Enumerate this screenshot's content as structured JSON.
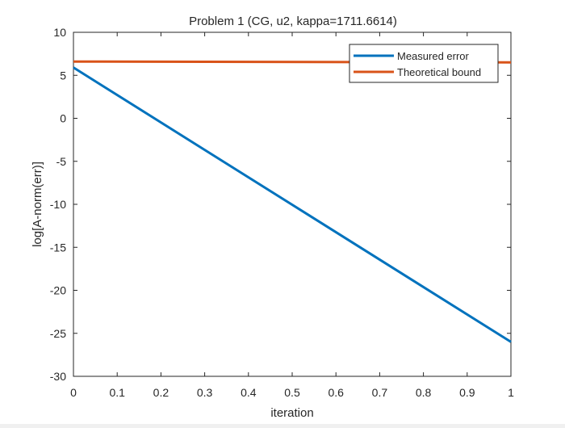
{
  "figure": {
    "background": "#ffffff"
  },
  "chart_data": {
    "type": "line",
    "title": "Problem 1 (CG, u2, kappa=1711.6614)",
    "xlabel": "iteration",
    "ylabel": "log[A-norm(err)]",
    "xlim": [
      0,
      1
    ],
    "ylim": [
      -30,
      10
    ],
    "xticks": [
      0,
      0.1,
      0.2,
      0.3,
      0.4,
      0.5,
      0.6,
      0.7,
      0.8,
      0.9,
      1
    ],
    "xtick_labels": [
      "0",
      "0.1",
      "0.2",
      "0.3",
      "0.4",
      "0.5",
      "0.6",
      "0.7",
      "0.8",
      "0.9",
      "1"
    ],
    "yticks": [
      -30,
      -25,
      -20,
      -15,
      -10,
      -5,
      0,
      5,
      10
    ],
    "ytick_labels": [
      "-30",
      "-25",
      "-20",
      "-15",
      "-10",
      "-5",
      "0",
      "5",
      "10"
    ],
    "grid": false,
    "legend_position": "top-right",
    "series": [
      {
        "name": "Measured error",
        "color": "#0072bd",
        "x": [
          0,
          1
        ],
        "y": [
          5.9,
          -26.0
        ]
      },
      {
        "name": "Theoretical bound",
        "color": "#d95319",
        "x": [
          0,
          1
        ],
        "y": [
          6.6,
          6.5
        ]
      }
    ]
  }
}
